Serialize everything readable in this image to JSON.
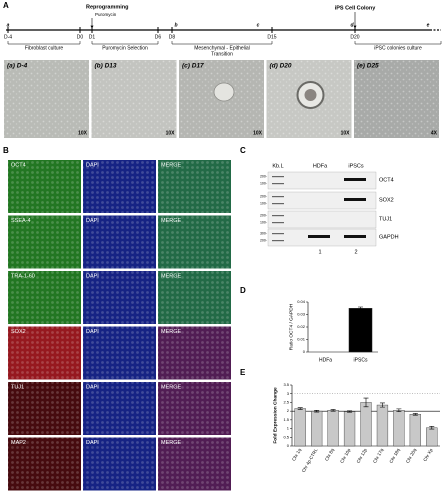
{
  "panel_a": {
    "label": "A",
    "events": {
      "reprogramming": "Reprogramming",
      "puromycin": "Puromycin",
      "colony": "iPS Cell Colony"
    },
    "stage_letters": [
      "a",
      "b",
      "c",
      "d",
      "e"
    ],
    "days": [
      "D-4",
      "D0",
      "D1",
      "D6",
      "D8",
      "D15",
      "D20"
    ],
    "stages": [
      [
        "Fibroblast culture"
      ],
      [
        "Puromycin Selection"
      ],
      [
        "Mesenchymal - Epithelial",
        "Transition"
      ],
      [
        "iPSC colonies culture"
      ]
    ],
    "images": [
      {
        "caption": "(a) D-4",
        "magnification": "10X"
      },
      {
        "caption": "(b) D13",
        "magnification": "10X"
      },
      {
        "caption": "(c) D17",
        "magnification": "10X"
      },
      {
        "caption": "(d) D20",
        "magnification": "10X"
      },
      {
        "caption": "(e) D25",
        "magnification": "4X"
      }
    ]
  },
  "panel_b": {
    "label": "B",
    "rows": [
      {
        "marker": "OCT4",
        "dapi": "DAPI",
        "merge": "MERGE",
        "color": "#2e9e2e"
      },
      {
        "marker": "SSEA-4",
        "dapi": "DAPI",
        "merge": "MERGE",
        "color": "#2e9e2e"
      },
      {
        "marker": "TRA-1-60",
        "dapi": "DAPI",
        "merge": "MERGE",
        "color": "#2e9e2e"
      },
      {
        "marker": "SOX2",
        "dapi": "DAPI",
        "merge": "MERGE",
        "color": "#c8202a"
      },
      {
        "marker": "TUJ1",
        "dapi": "DAPI",
        "merge": "MERGE",
        "color": "#c8202a"
      },
      {
        "marker": "MAP2",
        "dapi": "DAPI",
        "merge": "MERGE",
        "color": "#c8202a"
      }
    ]
  },
  "panel_c": {
    "label": "C",
    "lanes": [
      "Kb.L",
      "HDFa",
      "iPSCs"
    ],
    "lane_numbers": [
      "1",
      "2"
    ],
    "genes": [
      "OCT4",
      "SOX2",
      "TUJ1",
      "GAPDH"
    ],
    "ladder": [
      [
        "200-",
        "100-"
      ],
      [
        "200-",
        "100-"
      ],
      [
        "200-",
        "100-"
      ],
      [
        "300-",
        "200-"
      ]
    ]
  },
  "panel_labels": {
    "d": "D",
    "e": "E"
  },
  "chart_data": [
    {
      "type": "bar",
      "y_label": "Ratio OCT4 / GAPDH",
      "categories": [
        "HDFa",
        "iPSCs"
      ],
      "values": [
        0,
        0.035
      ],
      "errors": [
        null,
        0.001
      ],
      "color": "#000000",
      "ylim": [
        0,
        0.04
      ],
      "yticks": [
        0,
        0.01,
        0.02,
        0.03,
        0.04
      ]
    },
    {
      "type": "bar",
      "y_label": "Fold Expression Change",
      "categories": [
        "Chr 1q",
        "Chr 4p-CTRL",
        "Chr 8q",
        "Chr 10p",
        "Chr 12p",
        "Chr 17q",
        "Chr 18q",
        "Chr 20q",
        "Chr Xp"
      ],
      "values": [
        2.15,
        2.0,
        2.05,
        1.98,
        2.5,
        2.35,
        2.05,
        1.82,
        1.05
      ],
      "errors": [
        0.05,
        0.05,
        0.05,
        0.04,
        0.25,
        0.12,
        0.08,
        0.05,
        0.08
      ],
      "color": "#c8c8c8",
      "ylim": [
        0,
        3.5
      ],
      "yticks": [
        0,
        0.5,
        1,
        1.5,
        2,
        2.5,
        3,
        3.5
      ],
      "reference_lines": [
        {
          "value": 2,
          "style": "solid"
        },
        {
          "value": 3,
          "style": "dotted"
        }
      ]
    }
  ]
}
